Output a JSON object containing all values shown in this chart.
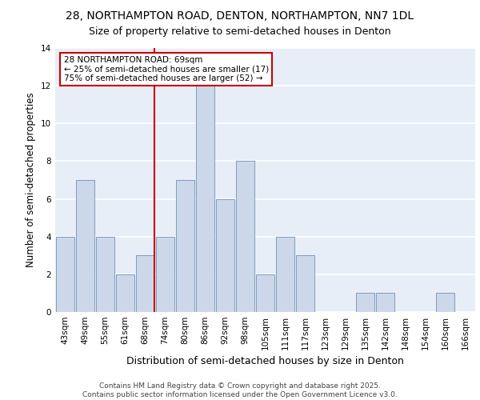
{
  "title1": "28, NORTHAMPTON ROAD, DENTON, NORTHAMPTON, NN7 1DL",
  "title2": "Size of property relative to semi-detached houses in Denton",
  "xlabel": "Distribution of semi-detached houses by size in Denton",
  "ylabel": "Number of semi-detached properties",
  "bin_labels": [
    "43sqm",
    "49sqm",
    "55sqm",
    "61sqm",
    "68sqm",
    "74sqm",
    "80sqm",
    "86sqm",
    "92sqm",
    "98sqm",
    "105sqm",
    "111sqm",
    "117sqm",
    "123sqm",
    "129sqm",
    "135sqm",
    "142sqm",
    "148sqm",
    "154sqm",
    "160sqm",
    "166sqm"
  ],
  "bin_values": [
    4,
    7,
    4,
    2,
    3,
    4,
    7,
    12,
    6,
    8,
    2,
    4,
    3,
    0,
    0,
    1,
    1,
    0,
    0,
    1,
    0
  ],
  "property_size_index": 4,
  "annotation_title": "28 NORTHAMPTON ROAD: 69sqm",
  "annotation_line1": "← 25% of semi-detached houses are smaller (17)",
  "annotation_line2": "75% of semi-detached houses are larger (52) →",
  "bar_facecolor": "#ccd8ea",
  "bar_edgecolor": "#7a9cc0",
  "vline_color": "#cc0000",
  "annotation_box_edgecolor": "#cc0000",
  "background_color": "#e8eef8",
  "grid_color": "#ffffff",
  "ylim": [
    0,
    14
  ],
  "yticks": [
    0,
    2,
    4,
    6,
    8,
    10,
    12,
    14
  ],
  "title1_fontsize": 10,
  "title2_fontsize": 9,
  "xlabel_fontsize": 9,
  "ylabel_fontsize": 8.5,
  "tick_fontsize": 7.5,
  "annotation_fontsize": 7.5,
  "footer_fontsize": 6.5,
  "footer": "Contains HM Land Registry data © Crown copyright and database right 2025.\nContains public sector information licensed under the Open Government Licence v3.0."
}
